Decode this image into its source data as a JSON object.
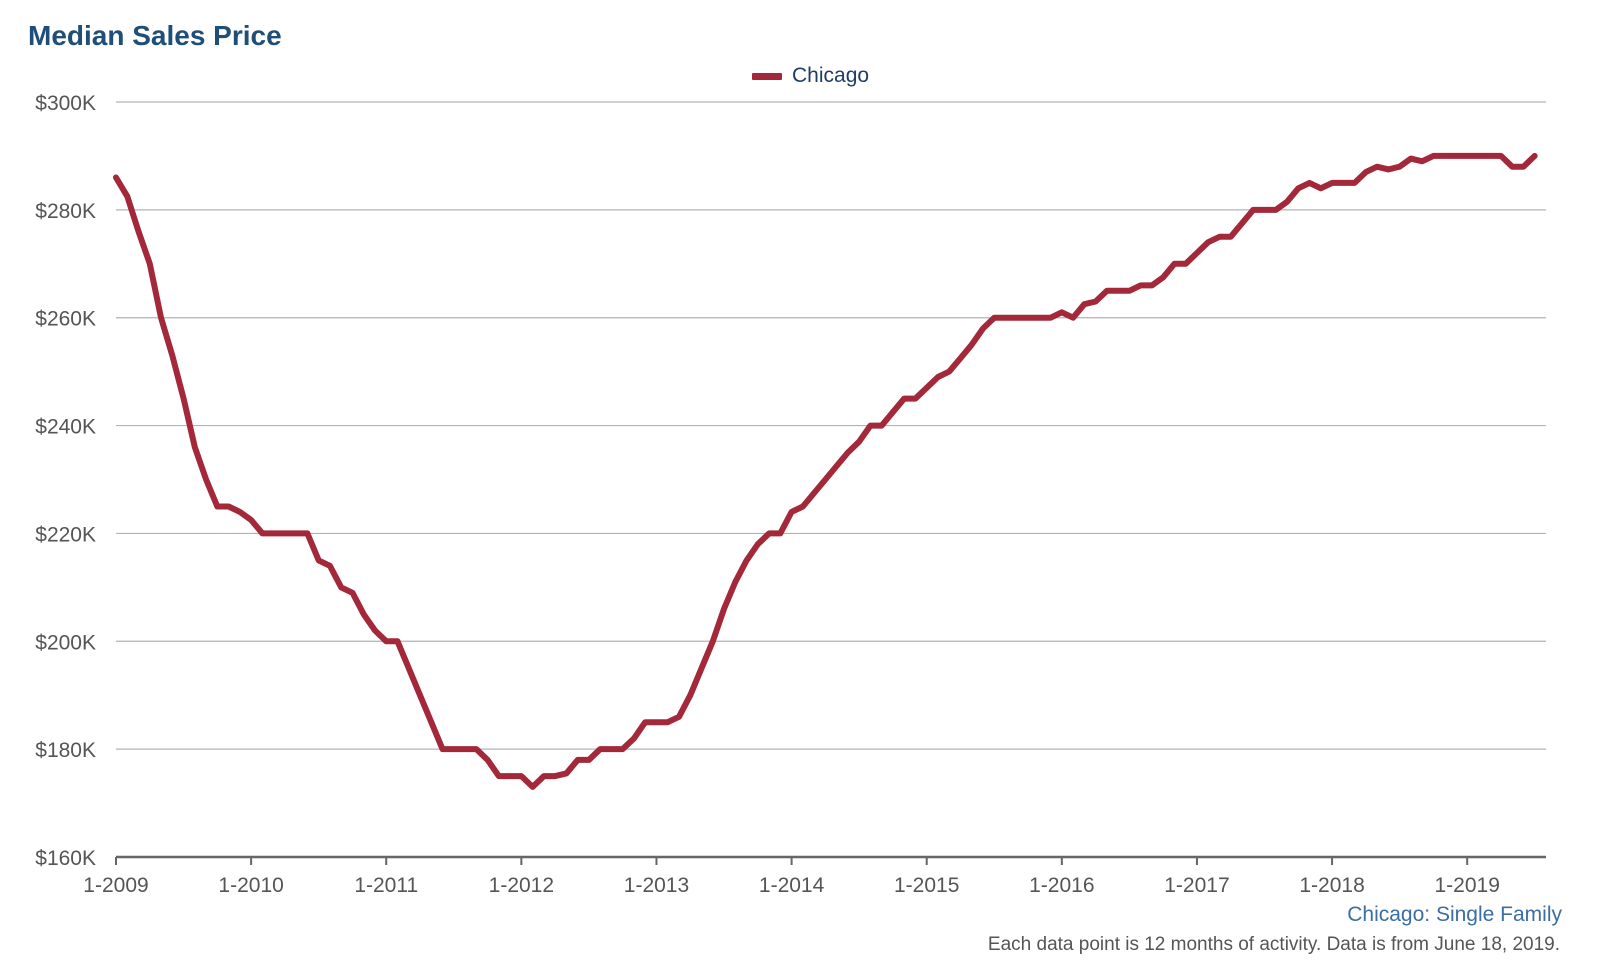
{
  "header": {
    "title": "Median Sales Price",
    "subtitle": "Chicago: Single Family",
    "note": "Each data point is 12 months of activity. Data is from June 18, 2019."
  },
  "colors": {
    "series": "#a3283a",
    "title": "#1f4e79",
    "grid": "#b3b3b3",
    "axis": "#666666"
  },
  "chart_data": {
    "type": "line",
    "xlabel": "",
    "ylabel": "",
    "ylim": [
      160000,
      300000
    ],
    "yticks": [
      160000,
      180000,
      200000,
      220000,
      240000,
      260000,
      280000,
      300000
    ],
    "ytick_labels": [
      "$160K",
      "$180K",
      "$200K",
      "$220K",
      "$240K",
      "$260K",
      "$280K",
      "$300K"
    ],
    "xtick_labels": [
      "1-2009",
      "1-2010",
      "1-2011",
      "1-2012",
      "1-2013",
      "1-2014",
      "1-2015",
      "1-2016",
      "1-2017",
      "1-2018",
      "1-2019"
    ],
    "legend": "top-center",
    "grid": true,
    "series": [
      {
        "name": "Chicago",
        "start": "1-2009",
        "frequency": "monthly",
        "values": [
          286000,
          282500,
          276000,
          270000,
          260000,
          253000,
          245000,
          236000,
          230000,
          225000,
          225000,
          224000,
          222500,
          220000,
          220000,
          220000,
          220000,
          220000,
          215000,
          214000,
          210000,
          209000,
          205000,
          202000,
          200000,
          200000,
          195000,
          190000,
          185000,
          180000,
          180000,
          180000,
          180000,
          178000,
          175000,
          175000,
          175000,
          173000,
          175000,
          175000,
          175500,
          178000,
          178000,
          180000,
          180000,
          180000,
          182000,
          185000,
          185000,
          185000,
          186000,
          190000,
          195000,
          200000,
          206000,
          211000,
          215000,
          218000,
          220000,
          220000,
          224000,
          225000,
          227500,
          230000,
          232500,
          235000,
          237000,
          240000,
          240000,
          242500,
          245000,
          245000,
          247000,
          249000,
          250000,
          252500,
          255000,
          258000,
          260000,
          260000,
          260000,
          260000,
          260000,
          260000,
          261000,
          260000,
          262500,
          263000,
          265000,
          265000,
          265000,
          266000,
          266000,
          267500,
          270000,
          270000,
          272000,
          274000,
          275000,
          275000,
          277500,
          280000,
          280000,
          280000,
          281500,
          284000,
          285000,
          284000,
          285000,
          285000,
          285000,
          287000,
          288000,
          287500,
          288000,
          289500,
          289000,
          290000,
          290000,
          290000,
          290000,
          290000,
          290000,
          290000,
          288000,
          288000,
          290000
        ]
      }
    ]
  }
}
